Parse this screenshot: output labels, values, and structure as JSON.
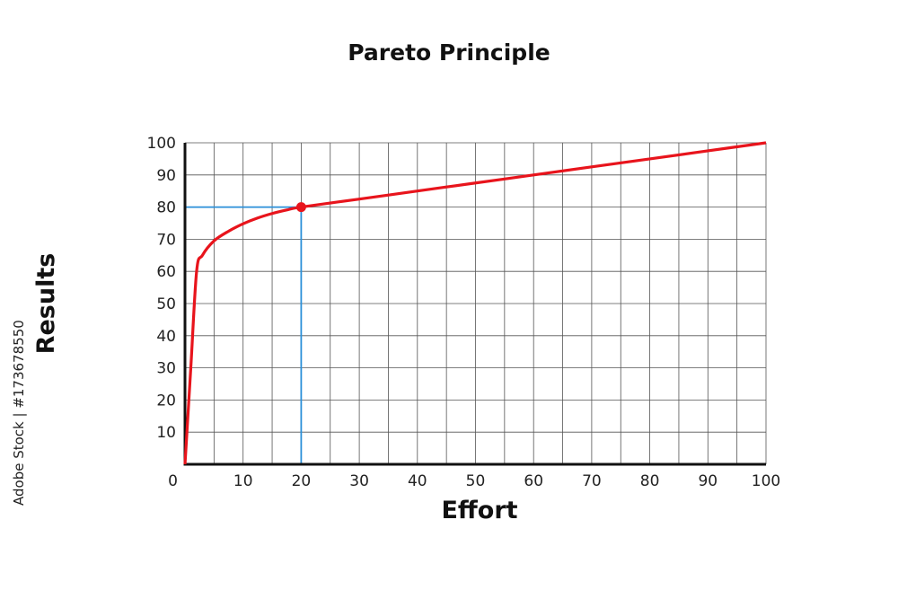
{
  "chart_data": {
    "type": "line",
    "title": "Pareto Principle",
    "xlabel": "Effort",
    "ylabel": "Results",
    "xlim": [
      0,
      100
    ],
    "ylim": [
      0,
      100
    ],
    "grid": true,
    "x_ticks": [
      "0",
      "10",
      "20",
      "30",
      "40",
      "50",
      "60",
      "70",
      "80",
      "90",
      "100"
    ],
    "y_ticks": [
      "10",
      "20",
      "30",
      "40",
      "50",
      "60",
      "70",
      "80",
      "90",
      "100"
    ],
    "series": [
      {
        "x": [
          0,
          1,
          2,
          3,
          5,
          7.5,
          10,
          12.5,
          15,
          17.5,
          20,
          30,
          40,
          50,
          60,
          70,
          80,
          90,
          100
        ],
        "y": [
          0,
          30,
          60,
          65,
          69.5,
          72.5,
          74.8,
          76.6,
          78.0,
          79.1,
          80,
          82.5,
          85,
          87.5,
          90,
          92.5,
          95,
          97.5,
          100
        ],
        "color": "#e8141c"
      }
    ],
    "highlight_point": {
      "x": 20,
      "y": 80,
      "color": "#e8141c"
    },
    "guide_line_color": "#2a8fd8"
  },
  "watermark": "Adobe Stock | #173678550"
}
